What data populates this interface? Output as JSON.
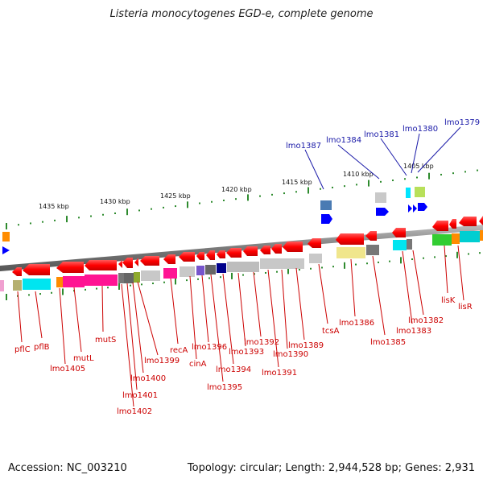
{
  "title": "Listeria monocytogenes EGD-e, complete genome",
  "footer": {
    "accession": "Accession: NC_003210",
    "topology": "Topology: circular; Length: 2,944,528 bp; Genes: 2,931"
  },
  "scale_ticks": [
    {
      "label": "1435 kbp"
    },
    {
      "label": "1430 kbp"
    },
    {
      "label": "1425 kbp"
    },
    {
      "label": "1420 kbp"
    },
    {
      "label": "1415 kbp"
    },
    {
      "label": "1410 kbp"
    },
    {
      "label": "1405 kbp"
    }
  ],
  "top_labels": [
    {
      "text": "lmo1387",
      "color": "#1a1aa8"
    },
    {
      "text": "lmo1384",
      "color": "#1a1aa8"
    },
    {
      "text": "lmo1381",
      "color": "#1a1aa8"
    },
    {
      "text": "lmo1380",
      "color": "#1a1aa8"
    },
    {
      "text": "lmo1379",
      "color": "#1a1aa8"
    }
  ],
  "bottom_labels": [
    {
      "text": "pflC"
    },
    {
      "text": "pflB"
    },
    {
      "text": "lmo1405"
    },
    {
      "text": "mutL"
    },
    {
      "text": "mutS"
    },
    {
      "text": "lmo1402"
    },
    {
      "text": "lmo1401"
    },
    {
      "text": "lmo1400"
    },
    {
      "text": "lmo1399"
    },
    {
      "text": "recA"
    },
    {
      "text": "cinA"
    },
    {
      "text": "lmo1396"
    },
    {
      "text": "lmo1395"
    },
    {
      "text": "lmo1394"
    },
    {
      "text": "lmo1393"
    },
    {
      "text": "lmo1392"
    },
    {
      "text": "lmo1391"
    },
    {
      "text": "lmo1390"
    },
    {
      "text": "lmo1389"
    },
    {
      "text": "tcsA"
    },
    {
      "text": "lmo1386"
    },
    {
      "text": "lmo1385"
    },
    {
      "text": "lmo1383"
    },
    {
      "text": "lmo1382"
    },
    {
      "text": "lisK"
    },
    {
      "text": "lisR"
    }
  ],
  "colors": {
    "label_red": "#cc0000",
    "label_blue": "#1a1aa8",
    "backbone": "#888888",
    "tick_green": "#2e8b2e",
    "gene_red": "#ff0000"
  }
}
